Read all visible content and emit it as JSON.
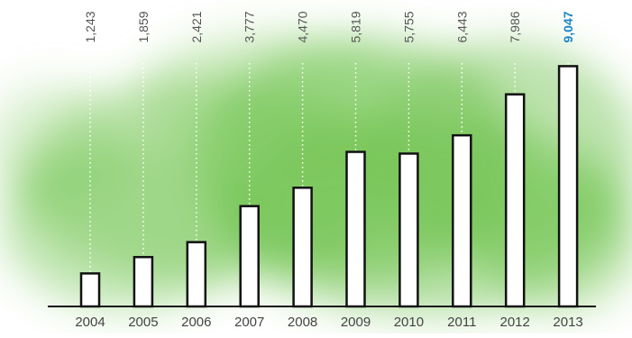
{
  "chart_data": {
    "type": "bar",
    "title": "",
    "xlabel": "",
    "ylabel": "",
    "categories": [
      "2004",
      "2005",
      "2006",
      "2007",
      "2008",
      "2009",
      "2010",
      "2011",
      "2012",
      "2013"
    ],
    "values": [
      1243,
      1859,
      2421,
      3777,
      4470,
      5819,
      5755,
      6443,
      7986,
      9047
    ],
    "value_labels": [
      "1,243",
      "1,859",
      "2,421",
      "3,777",
      "4,470",
      "5,819",
      "5,755",
      "6,443",
      "7,986",
      "9,047"
    ],
    "ylim": [
      0,
      9400
    ],
    "highlight_index": 9,
    "grid": false,
    "legend": "none"
  },
  "colors": {
    "bar_fill": "#ffffff",
    "bar_stroke": "#111111",
    "label_text": "#555555",
    "highlight_label": "#1a84c7",
    "background_wash": "#6cc24a",
    "baseline": "#111111",
    "dotted_leader": "#ffffff"
  }
}
